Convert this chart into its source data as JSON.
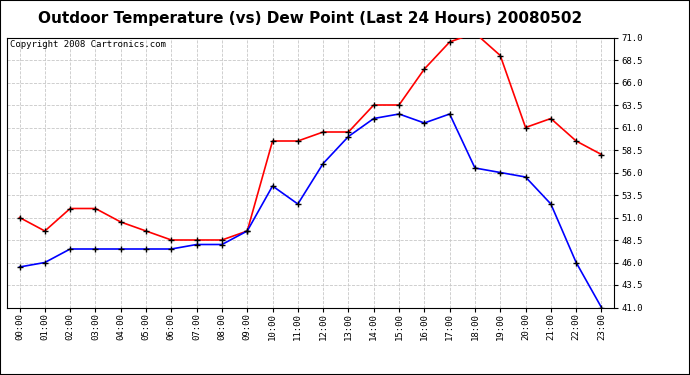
{
  "title": "Outdoor Temperature (vs) Dew Point (Last 24 Hours) 20080502",
  "copyright": "Copyright 2008 Cartronics.com",
  "hours": [
    "00:00",
    "01:00",
    "02:00",
    "03:00",
    "04:00",
    "05:00",
    "06:00",
    "07:00",
    "08:00",
    "09:00",
    "10:00",
    "11:00",
    "12:00",
    "13:00",
    "14:00",
    "15:00",
    "16:00",
    "17:00",
    "18:00",
    "19:00",
    "20:00",
    "21:00",
    "22:00",
    "23:00"
  ],
  "temp": [
    51.0,
    49.5,
    52.0,
    52.0,
    50.5,
    49.5,
    48.5,
    48.5,
    48.5,
    49.5,
    59.5,
    59.5,
    60.5,
    60.5,
    63.5,
    63.5,
    67.5,
    70.5,
    71.5,
    69.0,
    61.0,
    62.0,
    59.5,
    58.0
  ],
  "dew": [
    45.5,
    46.0,
    47.5,
    47.5,
    47.5,
    47.5,
    47.5,
    48.0,
    48.0,
    49.5,
    54.5,
    52.5,
    57.0,
    60.0,
    62.0,
    62.5,
    61.5,
    62.5,
    56.5,
    56.0,
    55.5,
    52.5,
    46.0,
    41.0
  ],
  "temp_color": "#ff0000",
  "dew_color": "#0000ff",
  "bg_color": "#ffffff",
  "plot_bg_color": "#ffffff",
  "grid_color": "#c8c8c8",
  "ylim": [
    41.0,
    71.0
  ],
  "yticks": [
    41.0,
    43.5,
    46.0,
    48.5,
    51.0,
    53.5,
    56.0,
    58.5,
    61.0,
    63.5,
    66.0,
    68.5,
    71.0
  ],
  "marker": "+",
  "marker_color": "#000000",
  "marker_size": 5,
  "linewidth": 1.2,
  "title_fontsize": 11,
  "copyright_fontsize": 6.5,
  "tick_fontsize": 6.5,
  "y_tick_fontsize": 6.5
}
